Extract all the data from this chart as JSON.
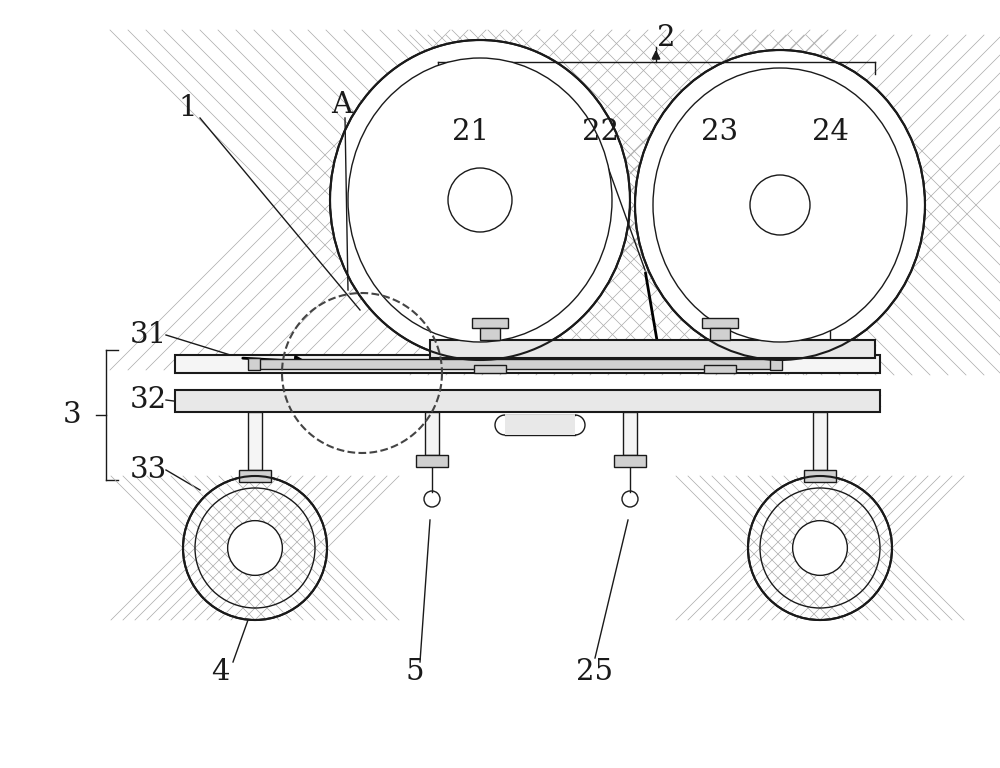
{
  "bg_color": "#ffffff",
  "lc": "#1a1a1a",
  "gray1": "#e8e8e8",
  "gray2": "#d0d0d0",
  "gray3": "#f5f5f5",
  "hatch_color": "#aaaaaa",
  "dash_color": "#444444"
}
